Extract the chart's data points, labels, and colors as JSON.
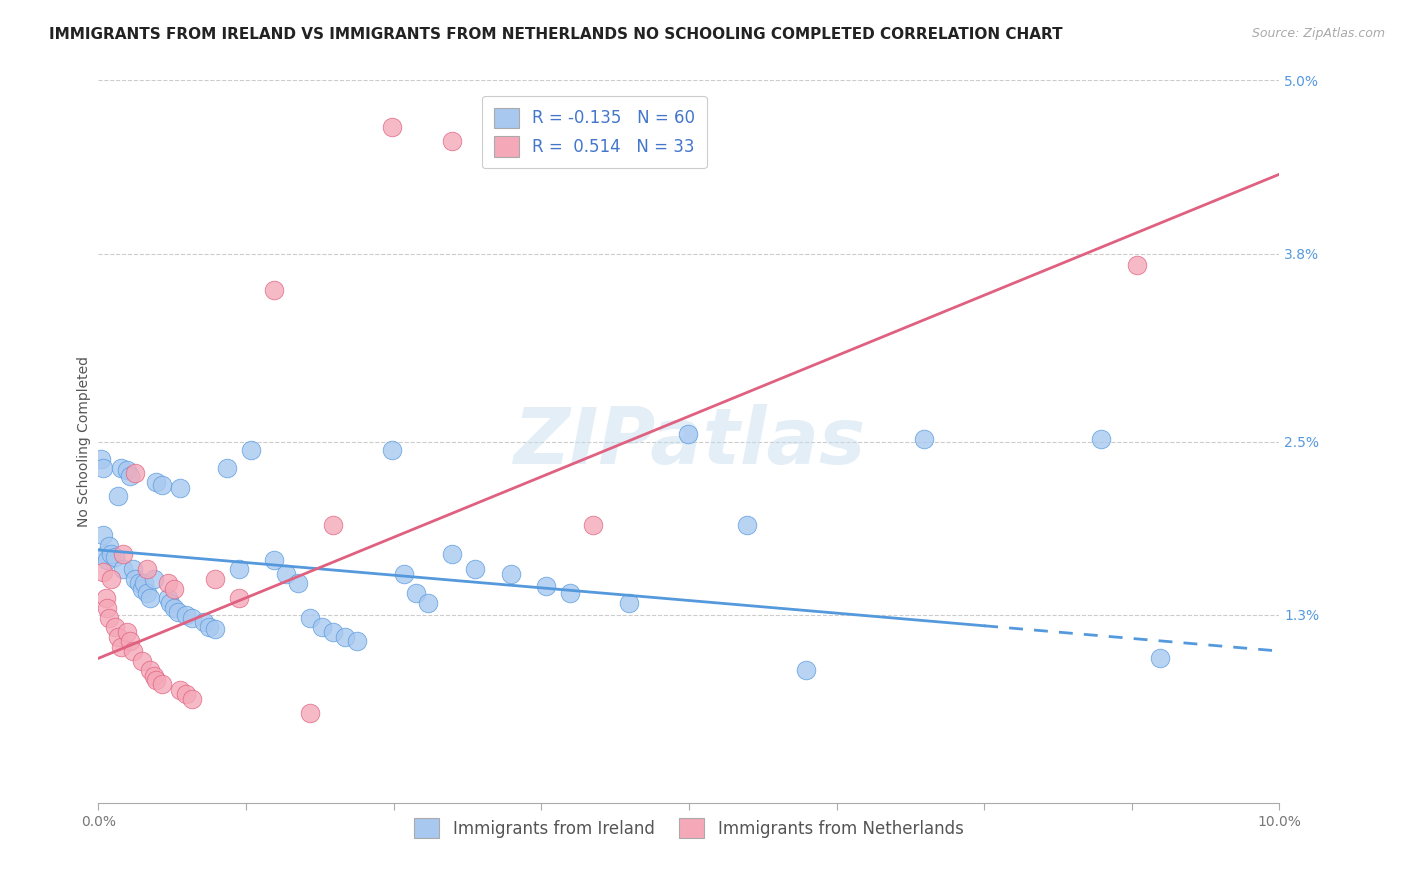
{
  "title": "IMMIGRANTS FROM IRELAND VS IMMIGRANTS FROM NETHERLANDS NO SCHOOLING COMPLETED CORRELATION CHART",
  "source": "Source: ZipAtlas.com",
  "ylabel": "No Schooling Completed",
  "legend_label_blue": "Immigrants from Ireland",
  "legend_label_pink": "Immigrants from Netherlands",
  "R_blue": -0.135,
  "N_blue": 60,
  "R_pink": 0.514,
  "N_pink": 33,
  "xlim": [
    0.0,
    10.0
  ],
  "ylim": [
    0.0,
    5.0
  ],
  "xticks": [
    0.0,
    1.25,
    2.5,
    3.75,
    5.0,
    6.25,
    7.5,
    8.75,
    10.0
  ],
  "xtick_labels": [
    "0.0%",
    "",
    "",
    "",
    "",
    "",
    "",
    "",
    "10.0%"
  ],
  "yticks": [
    0.0,
    1.3,
    2.5,
    3.8,
    5.0
  ],
  "ytick_labels": [
    "",
    "1.3%",
    "2.5%",
    "3.8%",
    "5.0%"
  ],
  "color_blue": "#a8c8f0",
  "color_pink": "#f4a8b8",
  "line_color_blue": "#5599dd",
  "line_color_pink": "#e06080",
  "watermark": "ZIPatlas",
  "blue_points": [
    [
      0.02,
      2.38
    ],
    [
      0.04,
      2.32
    ],
    [
      0.04,
      1.85
    ],
    [
      0.06,
      1.72
    ],
    [
      0.07,
      1.68
    ],
    [
      0.09,
      1.78
    ],
    [
      0.11,
      1.72
    ],
    [
      0.14,
      1.7
    ],
    [
      0.17,
      2.12
    ],
    [
      0.19,
      2.32
    ],
    [
      0.21,
      1.62
    ],
    [
      0.24,
      2.3
    ],
    [
      0.27,
      2.26
    ],
    [
      0.29,
      1.62
    ],
    [
      0.31,
      1.55
    ],
    [
      0.34,
      1.52
    ],
    [
      0.37,
      1.48
    ],
    [
      0.39,
      1.52
    ],
    [
      0.41,
      1.45
    ],
    [
      0.44,
      1.42
    ],
    [
      0.47,
      1.55
    ],
    [
      0.49,
      2.22
    ],
    [
      0.54,
      2.2
    ],
    [
      0.59,
      1.42
    ],
    [
      0.61,
      1.38
    ],
    [
      0.64,
      1.35
    ],
    [
      0.67,
      1.32
    ],
    [
      0.69,
      2.18
    ],
    [
      0.74,
      1.3
    ],
    [
      0.79,
      1.28
    ],
    [
      0.89,
      1.25
    ],
    [
      0.94,
      1.22
    ],
    [
      0.99,
      1.2
    ],
    [
      1.09,
      2.32
    ],
    [
      1.19,
      1.62
    ],
    [
      1.29,
      2.44
    ],
    [
      1.49,
      1.68
    ],
    [
      1.59,
      1.58
    ],
    [
      1.69,
      1.52
    ],
    [
      1.79,
      1.28
    ],
    [
      1.89,
      1.22
    ],
    [
      1.99,
      1.18
    ],
    [
      2.09,
      1.15
    ],
    [
      2.19,
      1.12
    ],
    [
      2.49,
      2.44
    ],
    [
      2.59,
      1.58
    ],
    [
      2.69,
      1.45
    ],
    [
      2.79,
      1.38
    ],
    [
      2.99,
      1.72
    ],
    [
      3.19,
      1.62
    ],
    [
      3.49,
      1.58
    ],
    [
      3.79,
      1.5
    ],
    [
      3.99,
      1.45
    ],
    [
      4.49,
      1.38
    ],
    [
      4.99,
      2.55
    ],
    [
      5.49,
      1.92
    ],
    [
      5.99,
      0.92
    ],
    [
      6.99,
      2.52
    ],
    [
      8.49,
      2.52
    ],
    [
      8.99,
      1.0
    ]
  ],
  "pink_points": [
    [
      0.04,
      1.6
    ],
    [
      0.06,
      1.42
    ],
    [
      0.07,
      1.35
    ],
    [
      0.09,
      1.28
    ],
    [
      0.11,
      1.55
    ],
    [
      0.14,
      1.22
    ],
    [
      0.17,
      1.15
    ],
    [
      0.19,
      1.08
    ],
    [
      0.21,
      1.72
    ],
    [
      0.24,
      1.18
    ],
    [
      0.27,
      1.12
    ],
    [
      0.29,
      1.05
    ],
    [
      0.31,
      2.28
    ],
    [
      0.37,
      0.98
    ],
    [
      0.41,
      1.62
    ],
    [
      0.44,
      0.92
    ],
    [
      0.47,
      0.88
    ],
    [
      0.49,
      0.85
    ],
    [
      0.54,
      0.82
    ],
    [
      0.59,
      1.52
    ],
    [
      0.64,
      1.48
    ],
    [
      0.69,
      0.78
    ],
    [
      0.74,
      0.75
    ],
    [
      0.79,
      0.72
    ],
    [
      0.99,
      1.55
    ],
    [
      1.19,
      1.42
    ],
    [
      1.49,
      3.55
    ],
    [
      1.79,
      0.62
    ],
    [
      1.99,
      1.92
    ],
    [
      2.49,
      4.68
    ],
    [
      2.99,
      4.58
    ],
    [
      4.19,
      1.92
    ],
    [
      8.79,
      3.72
    ]
  ],
  "blue_line_x": [
    0.0,
    10.0
  ],
  "blue_line_y": [
    1.75,
    1.05
  ],
  "blue_line_dash_start": 7.5,
  "pink_line_x": [
    0.0,
    10.0
  ],
  "pink_line_y": [
    1.0,
    4.35
  ],
  "title_fontsize": 11,
  "axis_label_fontsize": 10,
  "tick_fontsize": 10,
  "legend_fontsize": 12
}
